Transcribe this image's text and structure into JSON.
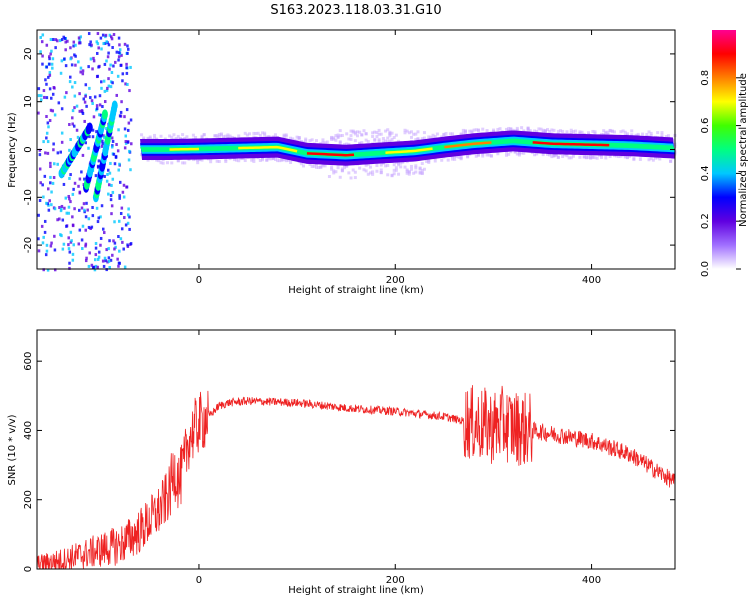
{
  "title": "S163.2023.118.03.31.G10",
  "chart_data": [
    {
      "type": "heatmap",
      "xlabel": "Height of straight line (km)",
      "ylabel": "Frequency (Hz)",
      "xlim": [
        -165,
        485
      ],
      "ylim": [
        -25,
        25
      ],
      "xticks": [
        0,
        200,
        400
      ],
      "yticks": [
        -20,
        -10,
        0,
        10,
        20
      ],
      "colorbar": {
        "label": "Normalized spectral amplitude",
        "range": [
          0,
          1
        ],
        "ticks": [
          "0.0",
          "0.2",
          "0.4",
          "0.6",
          "0.8"
        ],
        "colormap": [
          "#ffffff",
          "#a070ff",
          "#6000e0",
          "#0000ff",
          "#00c8ff",
          "#00ff80",
          "#40ff00",
          "#ffff00",
          "#ff8000",
          "#ff0000",
          "#ff0090"
        ]
      },
      "ridge": {
        "x": [
          -60,
          -30,
          0,
          40,
          80,
          110,
          150,
          180,
          220,
          250,
          280,
          320,
          360,
          400,
          440,
          485
        ],
        "freq": [
          0.0,
          0.0,
          0.1,
          0.3,
          0.5,
          -0.8,
          -1.2,
          -0.8,
          -0.3,
          0.5,
          1.2,
          1.8,
          1.2,
          1.0,
          0.8,
          0.3
        ]
      },
      "scatter_region": {
        "x": [
          -165,
          -70
        ],
        "freq": [
          -25,
          25
        ]
      }
    },
    {
      "type": "line",
      "xlabel": "Height of straight line (km)",
      "ylabel": "SNR (10 * v/v)",
      "xlim": [
        -165,
        485
      ],
      "ylim": [
        0,
        690
      ],
      "xticks": [
        0,
        200,
        400
      ],
      "yticks": [
        0,
        200,
        400,
        600
      ],
      "color": "#ee2222",
      "series": [
        {
          "x": [
            -165,
            -140,
            -120,
            -100,
            -80,
            -60,
            -50,
            -40,
            -30,
            -25,
            -20,
            -15,
            -10,
            0,
            10,
            20,
            30,
            50,
            100,
            150,
            200,
            250,
            280,
            300,
            310,
            320,
            340,
            360,
            400,
            440,
            485
          ],
          "values": [
            15,
            25,
            40,
            55,
            70,
            110,
            140,
            170,
            220,
            290,
            250,
            300,
            380,
            420,
            440,
            470,
            480,
            485,
            480,
            465,
            455,
            440,
            420,
            410,
            420,
            410,
            400,
            390,
            370,
            330,
            250
          ]
        }
      ]
    }
  ]
}
